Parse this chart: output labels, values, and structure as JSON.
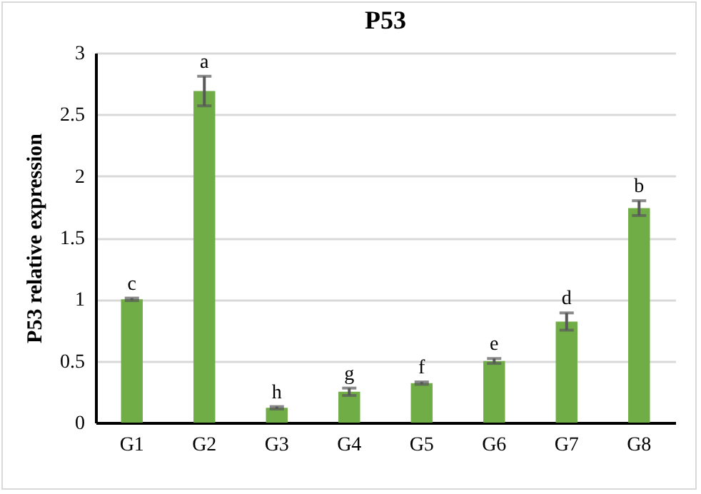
{
  "chart_data": {
    "type": "bar",
    "title": "P53",
    "ylabel": "P53 relative expression",
    "categories": [
      "G1",
      "G2",
      "G3",
      "G4",
      "G5",
      "G6",
      "G7",
      "G8"
    ],
    "values": [
      1.0,
      2.69,
      0.12,
      0.25,
      0.32,
      0.5,
      0.82,
      1.74
    ],
    "errors": [
      0.01,
      0.12,
      0.01,
      0.03,
      0.01,
      0.02,
      0.07,
      0.06
    ],
    "color": "#70ad47",
    "ylim": [
      0,
      3
    ],
    "yticks": [
      0,
      0.5,
      1,
      1.5,
      2,
      2.5,
      3
    ],
    "grid": "y",
    "annotations": [
      {
        "text": "c",
        "x": "G1",
        "y": 1.01
      },
      {
        "text": "a",
        "x": "G2",
        "y": 2.81
      },
      {
        "text": "h",
        "x": "G3",
        "y": 0.13
      },
      {
        "text": "g",
        "x": "G4",
        "y": 0.28
      },
      {
        "text": "f",
        "x": "G5",
        "y": 0.33
      },
      {
        "text": "e",
        "x": "G6",
        "y": 0.52
      },
      {
        "text": "d",
        "x": "G7",
        "y": 0.89
      },
      {
        "text": "b",
        "x": "G8",
        "y": 1.8
      }
    ]
  }
}
